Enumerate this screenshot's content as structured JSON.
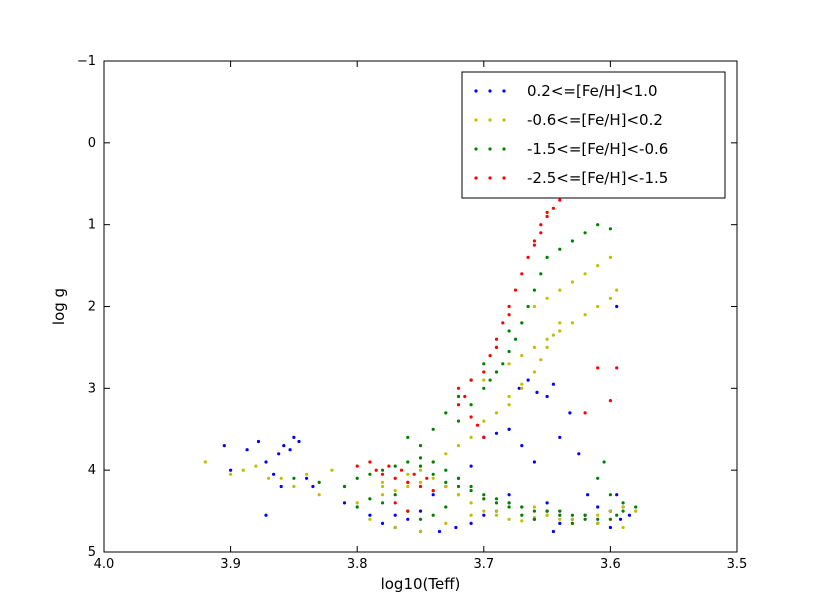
{
  "chart_data": {
    "type": "scatter",
    "title": "",
    "xlabel": "log10(Teff)",
    "ylabel": "log g",
    "xlim": [
      4.0,
      3.5
    ],
    "ylim": [
      5,
      -1
    ],
    "x_inverted": true,
    "y_inverted": true,
    "x_ticks": [
      4.0,
      3.9,
      3.8,
      3.7,
      3.6,
      3.5
    ],
    "x_tick_labels": [
      "4.0",
      "3.9",
      "3.8",
      "3.7",
      "3.6",
      "3.5"
    ],
    "y_ticks": [
      -1,
      0,
      1,
      2,
      3,
      4,
      5
    ],
    "y_tick_labels": [
      "−1",
      "0",
      "1",
      "2",
      "3",
      "4",
      "5"
    ],
    "grid": false,
    "legend_position": "top-right",
    "series": [
      {
        "name": "0.2<=[Fe/H]<1.0",
        "color": "#0000ff",
        "x": [
          3.905,
          3.9,
          3.887,
          3.878,
          3.872,
          3.866,
          3.862,
          3.858,
          3.853,
          3.85,
          3.846,
          3.84,
          3.835,
          3.86,
          3.872,
          3.81,
          3.79,
          3.77,
          3.75,
          3.735,
          3.722,
          3.71,
          3.7,
          3.69,
          3.68,
          3.672,
          3.665,
          3.658,
          3.65,
          3.645,
          3.64,
          3.632,
          3.625,
          3.618,
          3.61,
          3.6,
          3.595,
          3.592,
          3.585,
          3.68,
          3.69,
          3.7,
          3.71,
          3.72,
          3.73,
          3.74,
          3.65,
          3.66,
          3.645,
          3.6,
          3.61,
          3.62,
          3.63,
          3.64,
          3.66,
          3.67,
          3.68,
          3.75,
          3.76,
          3.77,
          3.78,
          3.6,
          3.59,
          3.595
        ],
        "y": [
          3.7,
          4.0,
          3.75,
          3.65,
          3.9,
          4.05,
          3.8,
          3.7,
          3.75,
          3.6,
          3.65,
          4.1,
          4.2,
          4.2,
          4.55,
          4.4,
          4.55,
          4.7,
          4.75,
          4.75,
          4.7,
          4.65,
          4.55,
          4.5,
          4.3,
          3.0,
          2.9,
          3.05,
          3.1,
          2.95,
          3.6,
          3.3,
          3.8,
          4.3,
          4.45,
          4.5,
          2.0,
          4.6,
          4.55,
          3.5,
          3.55,
          3.6,
          3.95,
          4.1,
          4.2,
          4.3,
          4.4,
          4.6,
          4.75,
          4.7,
          4.65,
          4.55,
          4.6,
          4.65,
          3.9,
          3.7,
          3.5,
          4.5,
          4.6,
          4.55,
          4.65,
          4.5,
          4.45,
          4.3
        ]
      },
      {
        "name": "-0.6<=[Fe/H]<0.2",
        "color": "#bfbf00",
        "x": [
          3.92,
          3.9,
          3.88,
          3.86,
          3.84,
          3.82,
          3.8,
          3.78,
          3.76,
          3.74,
          3.72,
          3.7,
          3.68,
          3.66,
          3.64,
          3.62,
          3.6,
          3.58,
          3.79,
          3.77,
          3.75,
          3.73,
          3.71,
          3.69,
          3.67,
          3.65,
          3.63,
          3.61,
          3.59,
          3.7,
          3.69,
          3.68,
          3.67,
          3.66,
          3.65,
          3.64,
          3.63,
          3.62,
          3.61,
          3.6,
          3.66,
          3.65,
          3.64,
          3.63,
          3.62,
          3.61,
          3.6,
          3.595,
          3.68,
          3.67,
          3.66,
          3.655,
          3.65,
          3.645,
          3.64,
          3.71,
          3.7,
          3.69,
          3.68,
          3.67,
          3.72,
          3.73,
          3.74,
          3.75,
          3.76,
          3.77,
          3.78,
          3.81,
          3.83,
          3.85,
          3.87,
          3.89,
          3.8,
          3.79,
          3.78,
          3.77,
          3.76,
          3.75,
          3.74,
          3.73,
          3.72,
          3.71,
          3.7,
          3.69,
          3.68,
          3.67,
          3.66,
          3.65,
          3.64,
          3.63,
          3.62,
          3.61,
          3.6,
          3.59,
          3.58
        ],
        "y": [
          3.9,
          4.05,
          3.95,
          4.1,
          4.05,
          4.0,
          4.1,
          4.2,
          4.15,
          4.25,
          4.3,
          4.35,
          4.4,
          4.45,
          4.5,
          4.55,
          4.6,
          4.5,
          4.6,
          4.7,
          4.75,
          4.65,
          4.55,
          4.5,
          4.45,
          4.55,
          4.6,
          4.65,
          4.7,
          2.9,
          2.8,
          2.7,
          2.6,
          2.5,
          2.4,
          2.3,
          2.2,
          2.1,
          2.0,
          1.9,
          2.0,
          1.9,
          1.8,
          1.7,
          1.6,
          1.5,
          1.4,
          1.8,
          3.2,
          3.0,
          2.8,
          2.65,
          2.5,
          2.35,
          2.2,
          3.6,
          3.4,
          3.3,
          3.1,
          2.95,
          3.7,
          3.8,
          3.9,
          4.0,
          4.05,
          4.1,
          4.15,
          4.2,
          4.3,
          4.2,
          4.1,
          4.0,
          4.4,
          4.35,
          4.3,
          4.25,
          4.2,
          4.15,
          4.1,
          4.2,
          4.3,
          4.4,
          4.5,
          4.55,
          4.6,
          4.62,
          4.58,
          4.55,
          4.6,
          4.65,
          4.6,
          4.55,
          4.5,
          4.45,
          4.5
        ]
      },
      {
        "name": "-1.5<=[Fe/H]<-0.6",
        "color": "#008000",
        "x": [
          3.85,
          3.83,
          3.81,
          3.8,
          3.79,
          3.78,
          3.77,
          3.76,
          3.75,
          3.74,
          3.73,
          3.72,
          3.71,
          3.7,
          3.69,
          3.68,
          3.67,
          3.66,
          3.65,
          3.64,
          3.63,
          3.62,
          3.61,
          3.6,
          3.595,
          3.59,
          3.58,
          3.72,
          3.71,
          3.7,
          3.695,
          3.69,
          3.685,
          3.68,
          3.675,
          3.67,
          3.665,
          3.66,
          3.655,
          3.65,
          3.64,
          3.63,
          3.62,
          3.61,
          3.6,
          3.76,
          3.75,
          3.74,
          3.73,
          3.72,
          3.71,
          3.7,
          3.69,
          3.68,
          3.77,
          3.78,
          3.79,
          3.8,
          3.76,
          3.75,
          3.74,
          3.73,
          3.6,
          3.61,
          3.59,
          3.605,
          3.62,
          3.63,
          3.64,
          3.65,
          3.66,
          3.67,
          3.68,
          3.69,
          3.7,
          3.71,
          3.72,
          3.73,
          3.74,
          3.75
        ],
        "y": [
          4.1,
          4.15,
          4.2,
          4.1,
          4.05,
          4.0,
          3.95,
          3.9,
          3.85,
          3.9,
          4.0,
          4.1,
          4.2,
          4.3,
          4.35,
          4.4,
          4.45,
          4.5,
          4.5,
          4.5,
          4.55,
          4.55,
          4.6,
          4.6,
          4.55,
          4.5,
          4.45,
          3.4,
          3.2,
          3.0,
          2.9,
          2.8,
          2.7,
          2.55,
          2.4,
          2.2,
          2.0,
          1.8,
          1.6,
          1.4,
          1.3,
          1.2,
          1.1,
          1.0,
          1.05,
          3.6,
          3.7,
          3.5,
          3.3,
          3.1,
          2.9,
          2.7,
          2.5,
          2.3,
          4.3,
          4.4,
          4.35,
          4.45,
          4.5,
          4.6,
          4.55,
          4.45,
          4.3,
          4.1,
          4.4,
          3.9,
          4.6,
          4.65,
          4.55,
          4.5,
          4.6,
          4.55,
          4.45,
          4.4,
          4.35,
          4.25,
          4.2,
          4.15,
          4.05,
          3.95
        ]
      },
      {
        "name": "-2.5<=[Fe/H]<-1.5",
        "color": "#ff0000",
        "x": [
          3.8,
          3.79,
          3.785,
          3.78,
          3.775,
          3.77,
          3.765,
          3.76,
          3.755,
          3.75,
          3.745,
          3.74,
          3.72,
          3.71,
          3.7,
          3.695,
          3.69,
          3.685,
          3.68,
          3.675,
          3.67,
          3.665,
          3.66,
          3.655,
          3.65,
          3.645,
          3.64,
          3.635,
          3.63,
          3.66,
          3.655,
          3.65,
          3.72,
          3.715,
          3.71,
          3.705,
          3.7,
          3.69,
          3.68,
          3.6,
          3.61,
          3.62,
          3.595,
          3.77,
          3.76
        ],
        "y": [
          3.95,
          3.9,
          4.0,
          4.05,
          3.95,
          4.1,
          4.0,
          4.15,
          4.05,
          4.2,
          4.1,
          4.25,
          3.0,
          2.9,
          2.8,
          2.6,
          2.4,
          2.2,
          2.0,
          1.8,
          1.6,
          1.4,
          1.25,
          1.1,
          0.9,
          0.8,
          0.7,
          0.65,
          0.6,
          1.2,
          1.0,
          0.85,
          3.2,
          3.1,
          3.35,
          3.45,
          3.6,
          2.5,
          2.1,
          3.15,
          2.75,
          3.3,
          2.75,
          4.4,
          4.5
        ]
      }
    ]
  }
}
